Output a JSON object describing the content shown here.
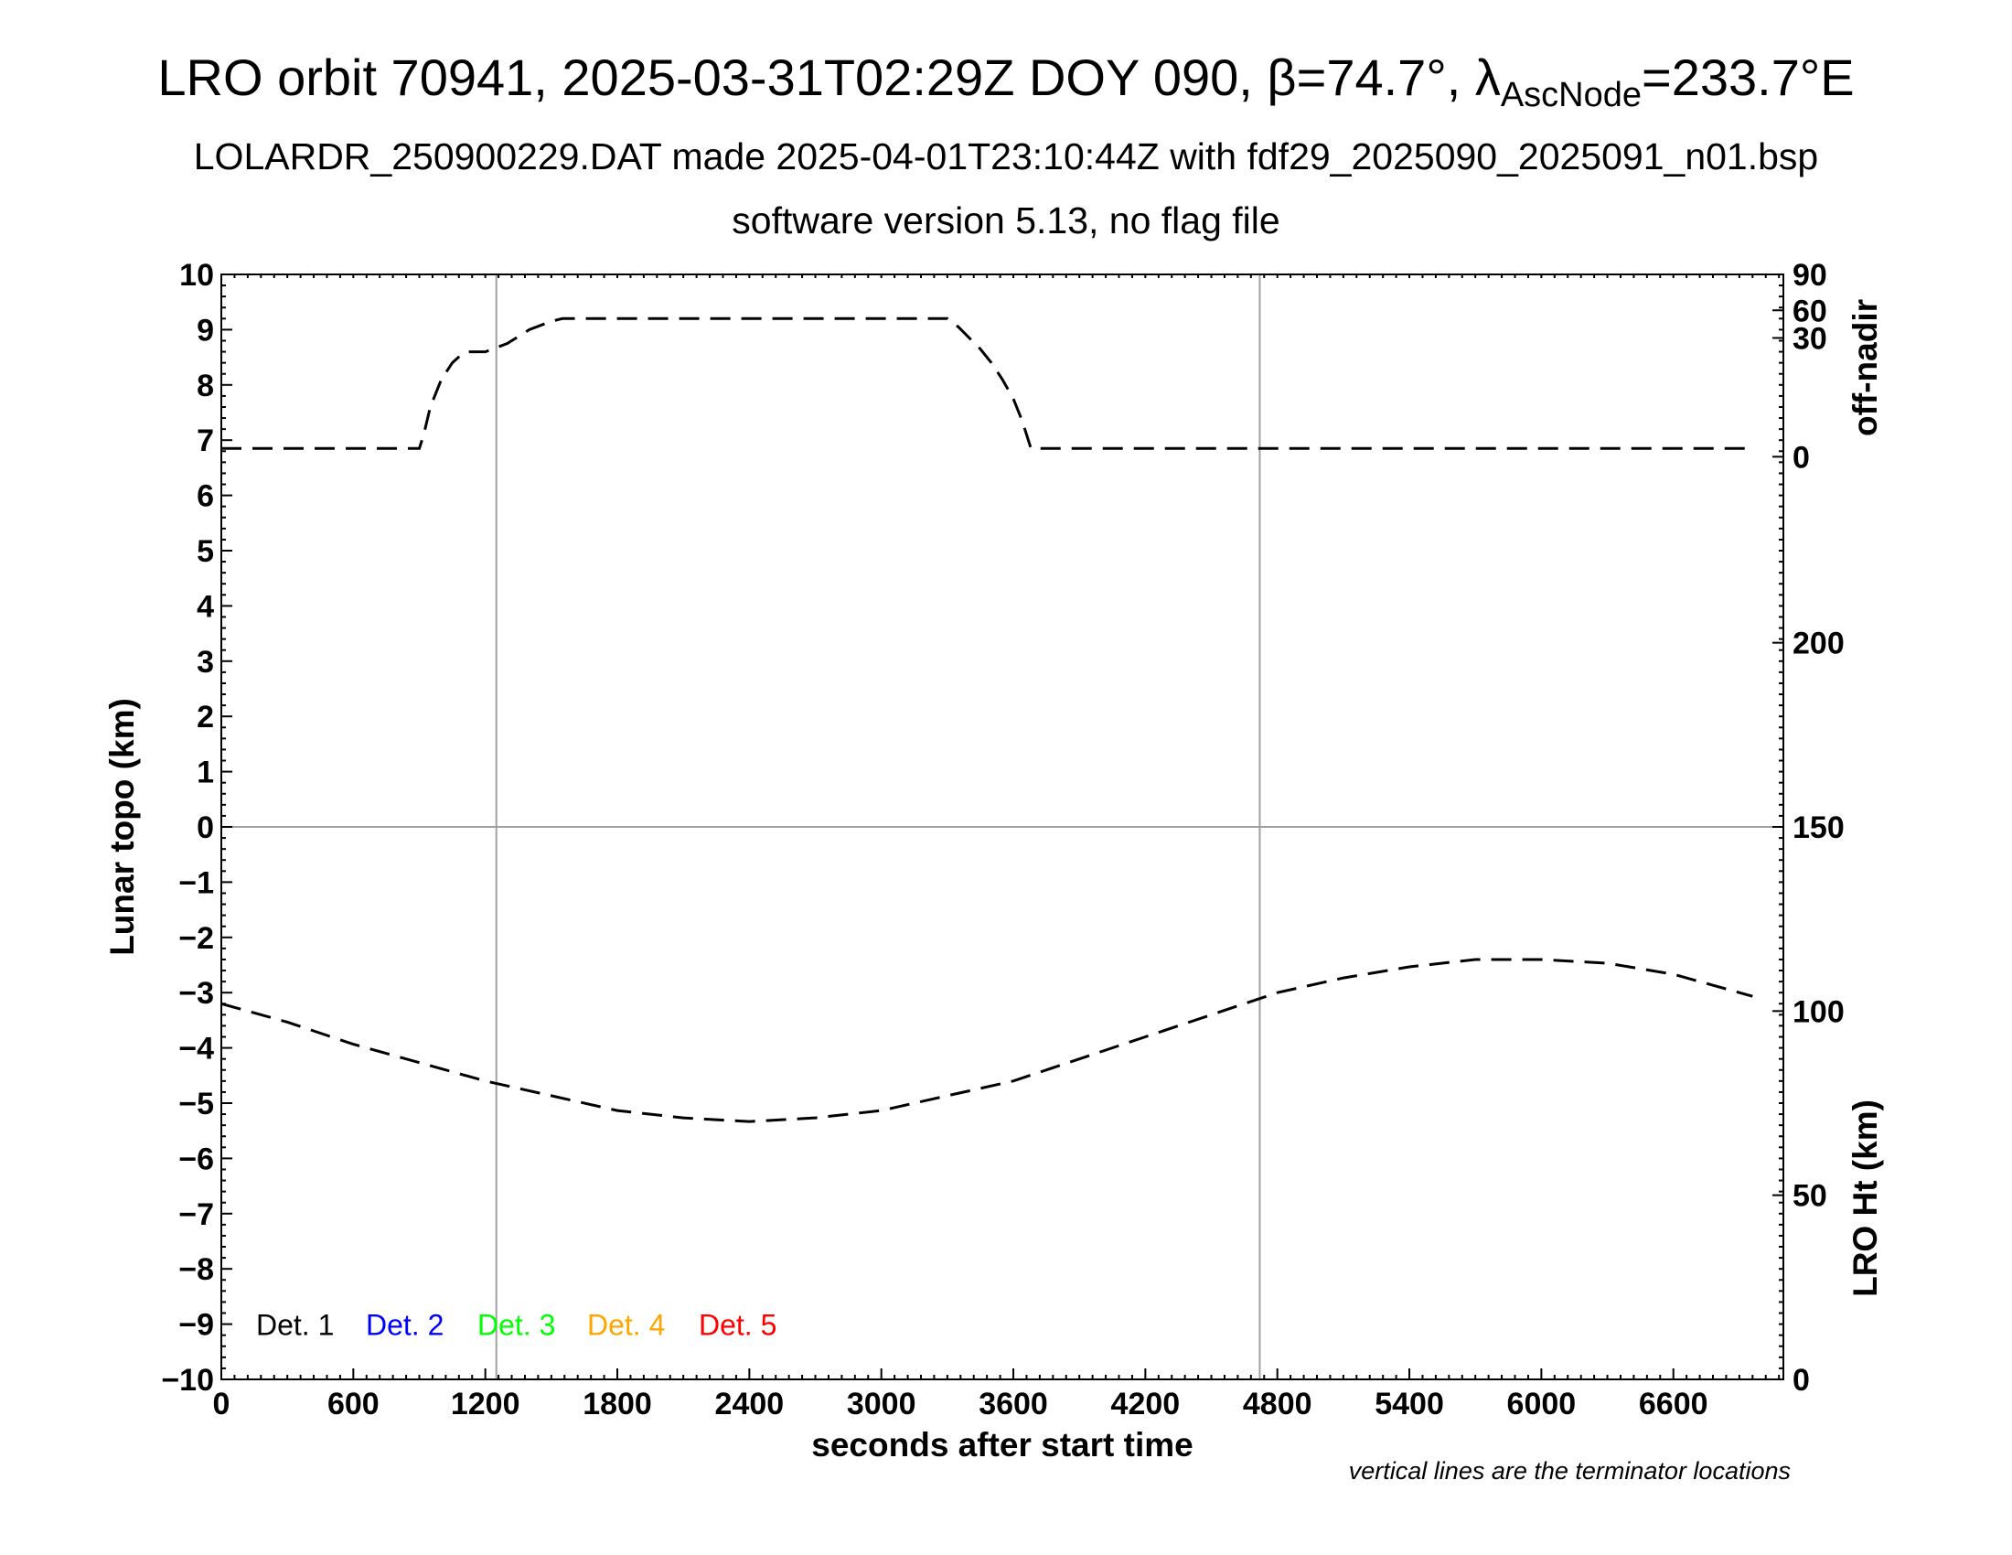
{
  "title": {
    "prefix": "LRO orbit 70941, 2025-03-31T02:29Z DOY 090, β=74.7°, λ",
    "sub": "AscNode",
    "suffix": "=233.7°E"
  },
  "subtitle1": "LOLARDR_250900229.DAT made 2025-04-01T23:10:44Z with fdf29_2025090_2025091_n01.bsp",
  "subtitle2": "software version 5.13, no flag file",
  "note": "vertical lines are the terminator locations",
  "chart_data": {
    "type": "line",
    "xlabel": "seconds after start time",
    "ylabel": "Lunar topo (km)",
    "xlim": [
      0,
      7100
    ],
    "ylim": [
      -10,
      10
    ],
    "xticks": [
      0,
      600,
      1200,
      1800,
      2400,
      3000,
      3600,
      4200,
      4800,
      5400,
      6000,
      6600
    ],
    "yticks": [
      -10,
      -9,
      -8,
      -7,
      -6,
      -5,
      -4,
      -3,
      -2,
      -1,
      0,
      1,
      2,
      3,
      4,
      5,
      6,
      7,
      8,
      9,
      10
    ],
    "ytick_labels": [
      "−10",
      "−9",
      "−8",
      "−7",
      "−6",
      "−5",
      "−4",
      "−3",
      "−2",
      "−1",
      "0",
      "1",
      "2",
      "3",
      "4",
      "5",
      "6",
      "7",
      "8",
      "9",
      "10"
    ],
    "right_axis_top": {
      "label": "off-nadir",
      "ticks": [
        0,
        30,
        60,
        90
      ],
      "tick_label_positions_topo_km": [
        6.7,
        8.85,
        9.35,
        10
      ]
    },
    "right_axis_bottom": {
      "label": "LRO Ht (km)",
      "ticks": [
        0,
        50,
        100,
        150,
        200
      ],
      "range": [
        0,
        300
      ]
    },
    "terminator_lines_x": [
      1250,
      4720
    ],
    "zero_line": true,
    "legend": [
      {
        "label": "Det. 1",
        "color": "#000000"
      },
      {
        "label": "Det. 2",
        "color": "#0000ff"
      },
      {
        "label": "Det. 3",
        "color": "#00ff00"
      },
      {
        "label": "Det. 4",
        "color": "#ffa500"
      },
      {
        "label": "Det. 5",
        "color": "#ff0000"
      }
    ],
    "series": [
      {
        "style": "dashed",
        "axis": "off-nadir (plotted on topo scale)",
        "x": [
          0,
          900,
          920,
          950,
          1000,
          1050,
          1100,
          1130,
          1200,
          1300,
          1400,
          1500,
          1550,
          1800,
          2400,
          3000,
          3300,
          3350,
          3400,
          3450,
          3500,
          3550,
          3600,
          3640,
          3660,
          3680,
          3700,
          3750,
          4200,
          4700,
          5400,
          6000,
          6600,
          6960
        ],
        "y": [
          6.85,
          6.85,
          7.1,
          7.6,
          8.1,
          8.4,
          8.58,
          8.6,
          8.6,
          8.75,
          9.0,
          9.15,
          9.2,
          9.2,
          9.2,
          9.2,
          9.2,
          9.05,
          8.85,
          8.65,
          8.4,
          8.1,
          7.75,
          7.35,
          7.1,
          6.85,
          6.85,
          6.85,
          6.85,
          6.85,
          6.85,
          6.85,
          6.85,
          6.85
        ]
      },
      {
        "style": "dashed",
        "axis": "LRO Ht (km)",
        "x": [
          0,
          300,
          600,
          900,
          1200,
          1500,
          1800,
          2100,
          2400,
          2700,
          3000,
          3300,
          3600,
          3900,
          4200,
          4500,
          4800,
          5100,
          5400,
          5700,
          6000,
          6300,
          6600,
          6960
        ],
        "y": [
          102,
          97,
          91,
          86,
          81,
          77,
          73,
          71,
          70,
          71,
          73,
          77,
          81,
          87,
          93,
          99,
          105,
          109,
          112,
          114,
          114,
          113,
          110,
          104
        ]
      }
    ]
  }
}
